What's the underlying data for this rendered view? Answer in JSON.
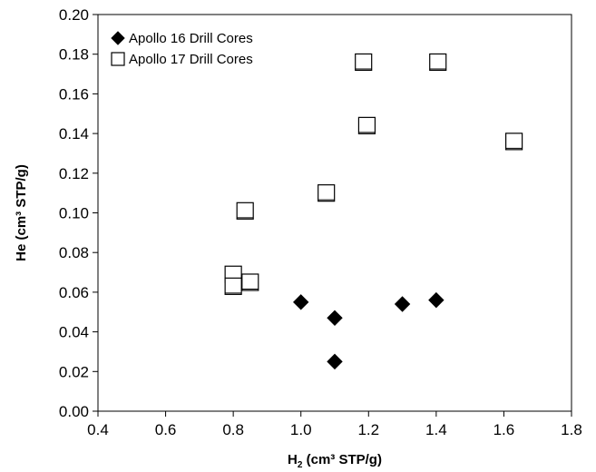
{
  "chart_data": {
    "type": "scatter",
    "xlabel": {
      "main": "H",
      "sub": "2",
      "rest": " (cm³ STP/g)"
    },
    "ylabel": "He (cm³ STP/g)",
    "xlim": [
      0.4,
      1.8
    ],
    "ylim": [
      0.0,
      0.2
    ],
    "xticks": [
      "0.4",
      "0.6",
      "0.8",
      "1.0",
      "1.2",
      "1.4",
      "1.6",
      "1.8"
    ],
    "yticks": [
      "0.00",
      "0.02",
      "0.04",
      "0.06",
      "0.08",
      "0.10",
      "0.12",
      "0.14",
      "0.16",
      "0.18",
      "0.20"
    ],
    "grid": false,
    "legend_position": "top-left",
    "series": [
      {
        "name": "Apollo 16 Drill Cores",
        "marker": "filled-diamond",
        "color": "#000000",
        "points": [
          {
            "x": 1.0,
            "y": 0.055
          },
          {
            "x": 1.1,
            "y": 0.047
          },
          {
            "x": 1.1,
            "y": 0.025
          },
          {
            "x": 1.3,
            "y": 0.054
          },
          {
            "x": 1.4,
            "y": 0.056
          }
        ]
      },
      {
        "name": "Apollo 17 Drill Cores",
        "marker": "open-square",
        "color": "#000000",
        "points": [
          {
            "x": 0.8,
            "y": 0.069
          },
          {
            "x": 0.8,
            "y": 0.063
          },
          {
            "x": 0.85,
            "y": 0.065
          },
          {
            "x": 0.835,
            "y": 0.101
          },
          {
            "x": 1.075,
            "y": 0.11
          },
          {
            "x": 1.185,
            "y": 0.176
          },
          {
            "x": 1.195,
            "y": 0.144
          },
          {
            "x": 1.405,
            "y": 0.176
          },
          {
            "x": 1.63,
            "y": 0.136
          }
        ]
      }
    ]
  }
}
